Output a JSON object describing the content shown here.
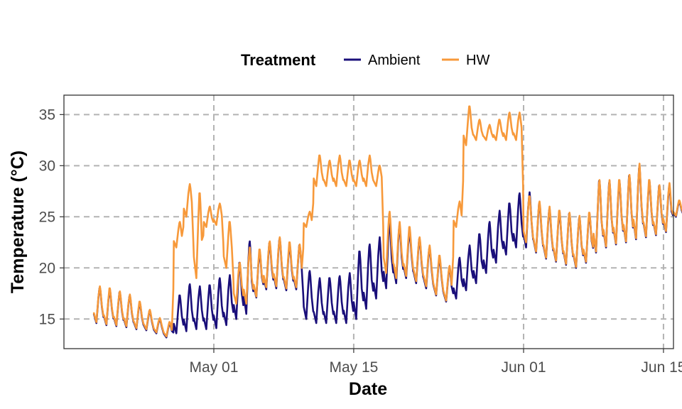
{
  "chart_data": {
    "type": "line",
    "xlabel": "Date",
    "ylabel": "Temperature (°C)",
    "x_axis": {
      "type": "date",
      "range": [
        "2021-04-16",
        "2021-06-16"
      ],
      "ticks": [
        {
          "date": "2021-05-01",
          "label": "May 01"
        },
        {
          "date": "2021-05-15",
          "label": "May 15"
        },
        {
          "date": "2021-06-01",
          "label": "Jun 01"
        },
        {
          "date": "2021-06-15",
          "label": "Jun 15"
        }
      ]
    },
    "y_axis": {
      "range": [
        12.1,
        36.9
      ],
      "ticks": [
        15,
        20,
        25,
        30,
        35
      ]
    },
    "grid": true,
    "legend": {
      "title": "Treatment",
      "position": "top",
      "entries": [
        {
          "label": "Ambient",
          "color": "#1a0f7a"
        },
        {
          "label": "HW",
          "color": "#f7993a"
        }
      ]
    },
    "series": [
      {
        "name": "Ambient",
        "color": "#1a0f7a",
        "daily_range": [
          [
            "2021-04-19",
            14.6,
            18.1
          ],
          [
            "2021-04-20",
            14.4,
            17.9
          ],
          [
            "2021-04-21",
            14.3,
            17.6
          ],
          [
            "2021-04-22",
            14.2,
            17.3
          ],
          [
            "2021-04-23",
            14.0,
            16.6
          ],
          [
            "2021-04-24",
            13.9,
            15.8
          ],
          [
            "2021-04-25",
            13.6,
            15.0
          ],
          [
            "2021-04-26",
            13.2,
            14.6
          ],
          [
            "2021-04-27",
            13.6,
            17.3
          ],
          [
            "2021-04-28",
            13.8,
            18.4
          ],
          [
            "2021-04-29",
            14.0,
            18.2
          ],
          [
            "2021-04-30",
            14.0,
            18.3
          ],
          [
            "2021-05-01",
            14.1,
            19.0
          ],
          [
            "2021-05-02",
            14.4,
            19.3
          ],
          [
            "2021-05-03",
            15.0,
            20.5
          ],
          [
            "2021-05-04",
            15.5,
            22.6
          ],
          [
            "2021-05-05",
            17.1,
            21.6
          ],
          [
            "2021-05-06",
            17.9,
            22.4
          ],
          [
            "2021-05-07",
            18.0,
            22.9
          ],
          [
            "2021-05-08",
            17.8,
            22.3
          ],
          [
            "2021-05-09",
            17.9,
            22.2
          ],
          [
            "2021-05-10",
            15.0,
            19.7
          ],
          [
            "2021-05-11",
            14.6,
            19.0
          ],
          [
            "2021-05-12",
            14.6,
            19.0
          ],
          [
            "2021-05-13",
            14.6,
            19.2
          ],
          [
            "2021-05-14",
            14.6,
            19.5
          ],
          [
            "2021-05-15",
            15.0,
            21.6
          ],
          [
            "2021-05-16",
            16.0,
            22.3
          ],
          [
            "2021-05-17",
            17.0,
            23.0
          ],
          [
            "2021-05-18",
            18.0,
            24.5
          ],
          [
            "2021-05-19",
            18.5,
            24.2
          ],
          [
            "2021-05-20",
            19.0,
            23.6
          ],
          [
            "2021-05-21",
            18.5,
            22.8
          ],
          [
            "2021-05-22",
            18.0,
            22.0
          ],
          [
            "2021-05-23",
            17.3,
            21.0
          ],
          [
            "2021-05-24",
            16.7,
            20.0
          ],
          [
            "2021-05-25",
            17.0,
            21.0
          ],
          [
            "2021-05-26",
            17.8,
            22.2
          ],
          [
            "2021-05-27",
            18.5,
            23.3
          ],
          [
            "2021-05-28",
            19.5,
            24.5
          ],
          [
            "2021-05-29",
            20.5,
            25.6
          ],
          [
            "2021-05-30",
            21.3,
            26.3
          ],
          [
            "2021-05-31",
            22.0,
            27.3
          ],
          [
            "2021-06-01",
            22.0,
            27.4
          ],
          [
            "2021-06-02",
            21.5,
            26.3
          ],
          [
            "2021-06-03",
            20.9,
            25.8
          ],
          [
            "2021-06-04",
            20.6,
            25.5
          ],
          [
            "2021-06-05",
            20.3,
            25.3
          ],
          [
            "2021-06-06",
            20.0,
            25.0
          ],
          [
            "2021-06-07",
            20.5,
            25.3
          ],
          [
            "2021-06-08",
            21.5,
            28.5
          ],
          [
            "2021-06-09",
            22.0,
            28.5
          ],
          [
            "2021-06-10",
            22.3,
            28.5
          ],
          [
            "2021-06-11",
            22.5,
            29.0
          ],
          [
            "2021-06-12",
            22.8,
            30.0
          ],
          [
            "2021-06-13",
            23.0,
            28.5
          ],
          [
            "2021-06-14",
            23.2,
            28.0
          ],
          [
            "2021-06-15",
            23.5,
            28.0
          ],
          [
            "2021-06-16",
            25.0,
            26.5
          ]
        ]
      },
      {
        "name": "HW",
        "color": "#f7993a",
        "daily_range": [
          [
            "2021-04-19",
            14.7,
            18.2
          ],
          [
            "2021-04-20",
            14.5,
            18.0
          ],
          [
            "2021-04-21",
            14.4,
            17.7
          ],
          [
            "2021-04-22",
            14.3,
            17.4
          ],
          [
            "2021-04-23",
            14.1,
            16.7
          ],
          [
            "2021-04-24",
            14.0,
            15.9
          ],
          [
            "2021-04-25",
            13.7,
            15.1
          ],
          [
            "2021-04-26",
            13.3,
            14.7
          ],
          [
            "2021-04-27",
            22.0,
            24.5
          ],
          [
            "2021-04-28",
            25.0,
            28.2
          ],
          [
            "2021-04-29",
            19.0,
            27.3
          ],
          [
            "2021-04-30",
            24.0,
            26.0
          ],
          [
            "2021-05-01",
            24.2,
            26.3
          ],
          [
            "2021-05-02",
            20.0,
            24.5
          ],
          [
            "2021-05-03",
            16.5,
            20.5
          ],
          [
            "2021-05-04",
            16.5,
            22.0
          ],
          [
            "2021-05-05",
            17.2,
            21.8
          ],
          [
            "2021-05-06",
            18.1,
            22.6
          ],
          [
            "2021-05-07",
            18.2,
            23.0
          ],
          [
            "2021-05-08",
            18.0,
            22.5
          ],
          [
            "2021-05-09",
            18.1,
            22.3
          ],
          [
            "2021-05-10",
            24.0,
            25.5
          ],
          [
            "2021-05-11",
            28.0,
            31.0
          ],
          [
            "2021-05-12",
            28.0,
            30.5
          ],
          [
            "2021-05-13",
            28.0,
            31.0
          ],
          [
            "2021-05-14",
            28.0,
            30.5
          ],
          [
            "2021-05-15",
            28.0,
            30.5
          ],
          [
            "2021-05-16",
            28.0,
            31.0
          ],
          [
            "2021-05-17",
            28.0,
            30.0
          ],
          [
            "2021-05-18",
            19.5,
            25.5
          ],
          [
            "2021-05-19",
            19.0,
            24.5
          ],
          [
            "2021-05-20",
            19.2,
            24.0
          ],
          [
            "2021-05-21",
            18.7,
            23.0
          ],
          [
            "2021-05-22",
            18.2,
            22.2
          ],
          [
            "2021-05-23",
            17.4,
            21.2
          ],
          [
            "2021-05-24",
            16.8,
            20.2
          ],
          [
            "2021-05-25",
            24.0,
            26.5
          ],
          [
            "2021-05-26",
            32.0,
            35.8
          ],
          [
            "2021-05-27",
            32.5,
            34.5
          ],
          [
            "2021-05-28",
            32.5,
            34.0
          ],
          [
            "2021-05-29",
            32.5,
            34.5
          ],
          [
            "2021-05-30",
            32.5,
            35.2
          ],
          [
            "2021-05-31",
            32.5,
            35.2
          ],
          [
            "2021-06-01",
            22.5,
            27.0
          ],
          [
            "2021-06-02",
            21.6,
            26.5
          ],
          [
            "2021-06-03",
            21.0,
            26.0
          ],
          [
            "2021-06-04",
            20.7,
            25.6
          ],
          [
            "2021-06-05",
            20.4,
            25.4
          ],
          [
            "2021-06-06",
            20.1,
            25.1
          ],
          [
            "2021-06-07",
            20.6,
            25.4
          ],
          [
            "2021-06-08",
            21.6,
            28.6
          ],
          [
            "2021-06-09",
            22.1,
            28.6
          ],
          [
            "2021-06-10",
            22.4,
            28.6
          ],
          [
            "2021-06-11",
            22.6,
            29.1
          ],
          [
            "2021-06-12",
            22.9,
            30.2
          ],
          [
            "2021-06-13",
            23.1,
            28.6
          ],
          [
            "2021-06-14",
            23.3,
            28.1
          ],
          [
            "2021-06-15",
            23.6,
            28.3
          ],
          [
            "2021-06-16",
            25.1,
            26.6
          ]
        ]
      }
    ]
  }
}
